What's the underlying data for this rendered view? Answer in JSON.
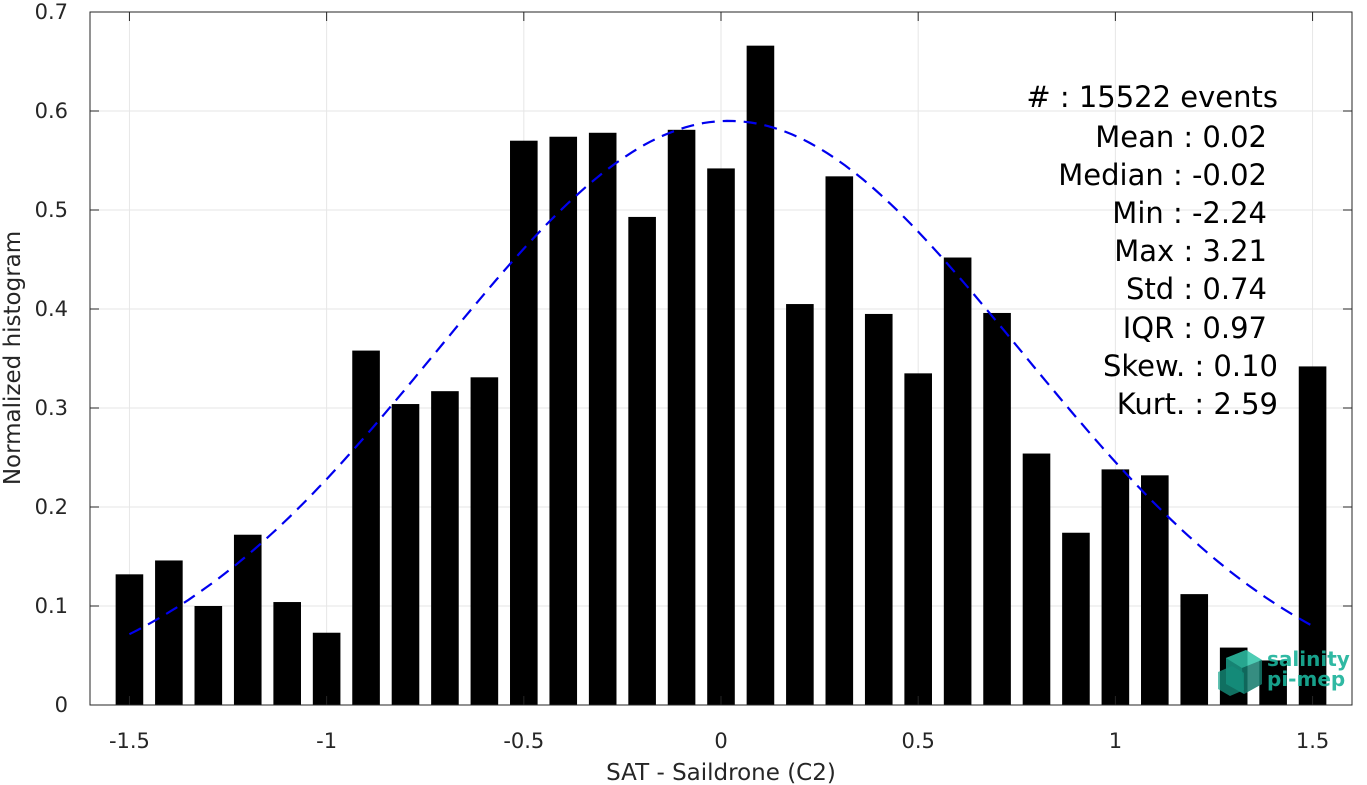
{
  "chart_data": {
    "type": "bar",
    "xlabel": "SAT - Saildrone (C2)",
    "ylabel": "Normalized histogram",
    "xlim": [
      -1.6,
      1.6
    ],
    "ylim": [
      0,
      0.7
    ],
    "grid": true,
    "x_ticks": [
      -1.5,
      -1,
      -0.5,
      0,
      0.5,
      1,
      1.5
    ],
    "x_tick_labels": [
      "-1.5",
      "-1",
      "-0.5",
      "0",
      "0.5",
      "1",
      "1.5"
    ],
    "y_ticks": [
      0,
      0.1,
      0.2,
      0.3,
      0.4,
      0.5,
      0.6,
      0.7
    ],
    "y_tick_labels": [
      "0",
      "0.1",
      "0.2",
      "0.3",
      "0.4",
      "0.5",
      "0.6",
      "0.7"
    ],
    "bar_width": 0.07,
    "bar_color": "#000000",
    "series": [
      {
        "x": [
          -1.5,
          -1.4,
          -1.3,
          -1.2,
          -1.1,
          -1.0,
          -0.9,
          -0.8,
          -0.7,
          -0.6,
          -0.5,
          -0.4,
          -0.3,
          -0.2,
          -0.1,
          0.0,
          0.1,
          0.2,
          0.3,
          0.4,
          0.5,
          0.6,
          0.7,
          0.8,
          0.9,
          1.0,
          1.1,
          1.2,
          1.3,
          1.4,
          1.5
        ],
        "values": [
          0.132,
          0.146,
          0.1,
          0.172,
          0.104,
          0.073,
          0.358,
          0.304,
          0.317,
          0.331,
          0.57,
          0.574,
          0.578,
          0.493,
          0.581,
          0.542,
          0.666,
          0.405,
          0.534,
          0.395,
          0.335,
          0.452,
          0.396,
          0.254,
          0.174,
          0.238,
          0.232,
          0.112,
          0.058,
          0.045,
          0.342
        ]
      }
    ],
    "fit_curve": {
      "style": "dashed",
      "color": "#0000ee",
      "mean": 0.02,
      "std": 0.74,
      "peak": 0.59,
      "x_range": [
        -1.5,
        1.5
      ]
    },
    "annotations": [
      "#  : 15522 events",
      "Mean : 0.02",
      "Median : -0.02",
      "Min : -2.24",
      "Max : 3.21",
      "Std : 0.74",
      "IQR : 0.97",
      "Skew. : 0.10",
      "Kurt. : 2.59"
    ]
  },
  "logo": {
    "line1": "salinity",
    "line2": "pi-mep",
    "color": "#1ab29a"
  }
}
